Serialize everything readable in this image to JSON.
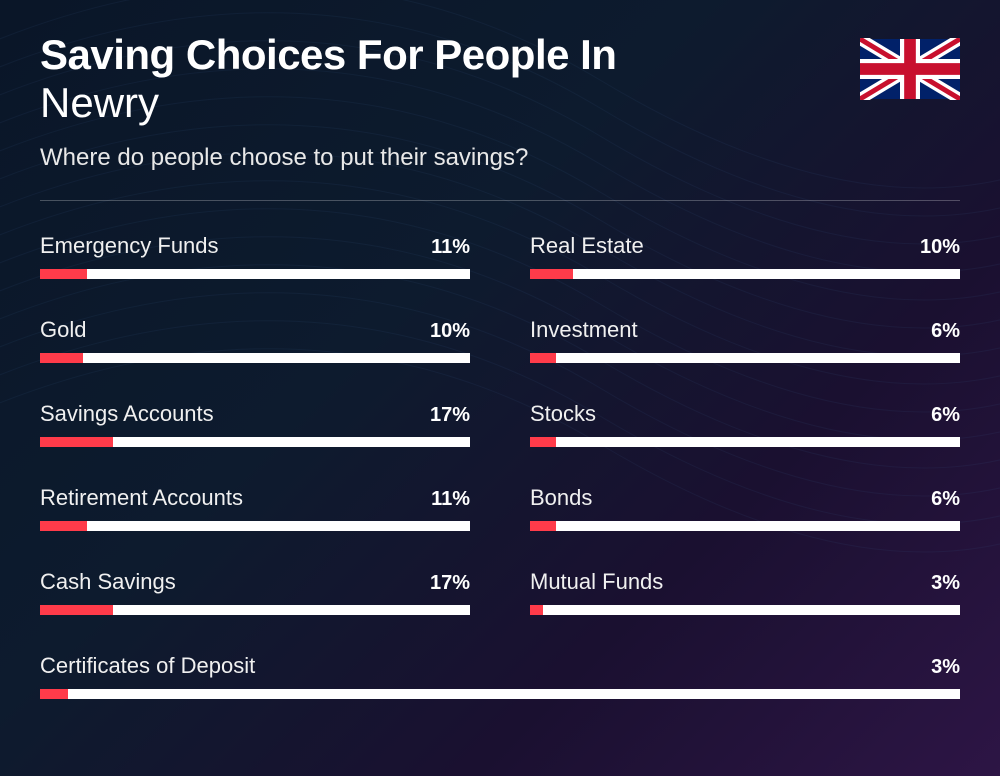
{
  "header": {
    "title_line1": "Saving Choices For People In",
    "title_line2": "Newry",
    "subtitle": "Where do people choose to put their savings?"
  },
  "flag": {
    "name": "uk-flag",
    "bg": "#012169",
    "white": "#ffffff",
    "red": "#C8102E"
  },
  "chart": {
    "type": "bar",
    "bar_track_color": "#ffffff",
    "bar_fill_color": "#ff3b4a",
    "text_color": "#ffffff",
    "label_fontsize": 22,
    "value_fontsize": 20,
    "columns": [
      [
        {
          "label": "Emergency Funds",
          "value": "11%",
          "pct": 11
        },
        {
          "label": "Gold",
          "value": "10%",
          "pct": 10
        },
        {
          "label": "Savings Accounts",
          "value": "17%",
          "pct": 17
        },
        {
          "label": "Retirement Accounts",
          "value": "11%",
          "pct": 11
        },
        {
          "label": "Cash Savings",
          "value": "17%",
          "pct": 17
        }
      ],
      [
        {
          "label": "Real Estate",
          "value": "10%",
          "pct": 10
        },
        {
          "label": "Investment",
          "value": "6%",
          "pct": 6
        },
        {
          "label": "Stocks",
          "value": "6%",
          "pct": 6
        },
        {
          "label": "Bonds",
          "value": "6%",
          "pct": 6
        },
        {
          "label": "Mutual Funds",
          "value": "3%",
          "pct": 3
        }
      ]
    ],
    "full_row": {
      "label": "Certificates of Deposit",
      "value": "3%",
      "pct": 3
    }
  },
  "background": {
    "line_color": "#3a5a8a"
  }
}
